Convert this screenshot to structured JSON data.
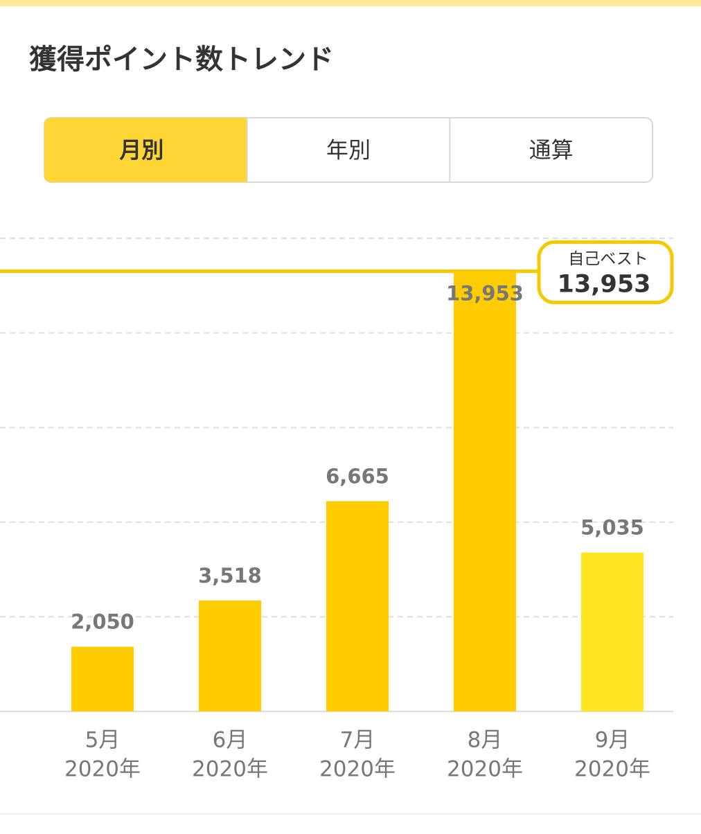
{
  "header": {
    "title": "獲得ポイント数トレンド"
  },
  "tabs": {
    "items": [
      "月別",
      "年別",
      "通算"
    ],
    "selected": 0
  },
  "chart_data": {
    "type": "bar",
    "categories": [
      "5月",
      "6月",
      "7月",
      "8月",
      "9月"
    ],
    "category_sublabels": [
      "2020年",
      "2020年",
      "2020年",
      "2020年",
      "2020年"
    ],
    "values": [
      2050,
      3518,
      6665,
      13953,
      5035
    ],
    "value_labels": [
      "2,050",
      "3,518",
      "6,665",
      "13,953",
      "5,035"
    ],
    "colors": [
      "#ffcc00",
      "#ffcc00",
      "#ffcc00",
      "#ffcc00",
      "#ffe41f"
    ],
    "ylim": [
      0,
      15000
    ],
    "gridlines": [
      3000,
      6000,
      9000,
      12000,
      15000
    ],
    "grid": true,
    "best": {
      "label": "自己ベスト",
      "value": 13953,
      "value_label": "13,953"
    }
  }
}
